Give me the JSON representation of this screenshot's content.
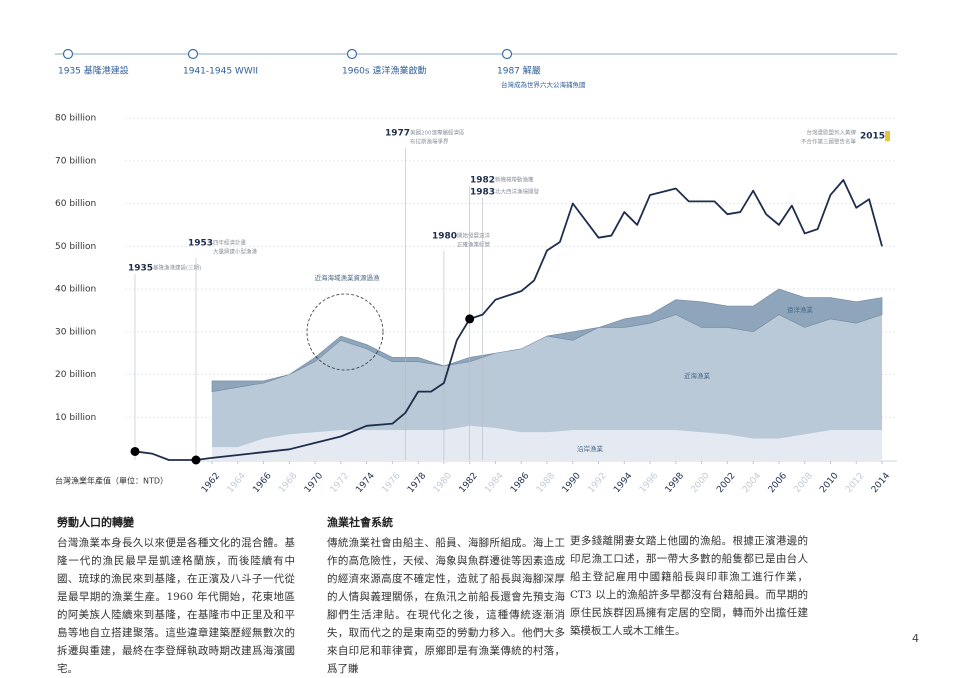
{
  "timeline": [
    {
      "label": "1935 基隆港建設"
    },
    {
      "label": "1941-1945 WWII"
    },
    {
      "label": "1960s 遠洋漁業啟動"
    },
    {
      "label": "1987 解嚴",
      "note": "台灣成為世界六大公海捕魚國"
    }
  ],
  "chart_data": {
    "type": "area",
    "y_label": "台灣漁業年產值（單位：NTD）",
    "ylim": [
      0,
      80
    ],
    "yticks": [
      {
        "value": 10,
        "label": "10 billion"
      },
      {
        "value": 20,
        "label": "20 billion"
      },
      {
        "value": 30,
        "label": "30 billion"
      },
      {
        "value": 40,
        "label": "40 billion"
      },
      {
        "value": 50,
        "label": "50 billion"
      },
      {
        "value": 60,
        "label": "60 billion"
      },
      {
        "value": 70,
        "label": "70 billion"
      },
      {
        "value": 80,
        "label": "80 billion"
      }
    ],
    "xticks": [
      1962,
      1964,
      1966,
      1968,
      1970,
      1972,
      1974,
      1976,
      1978,
      1980,
      1982,
      1984,
      1986,
      1988,
      1990,
      1992,
      1994,
      1996,
      1998,
      2000,
      2002,
      2004,
      2006,
      2008,
      2010,
      2012,
      2014
    ],
    "x": [
      1962,
      1964,
      1966,
      1968,
      1970,
      1972,
      1974,
      1976,
      1978,
      1980,
      1982,
      1984,
      1986,
      1988,
      1990,
      1992,
      1994,
      1996,
      1998,
      2000,
      2002,
      2004,
      2006,
      2008,
      2010,
      2012,
      2014
    ],
    "series": [
      {
        "name": "沿岸漁業",
        "color": "#e4e9f2",
        "values": [
          3,
          3,
          5,
          6,
          6.5,
          7,
          7,
          7,
          7,
          7,
          8,
          7.5,
          6.5,
          6.5,
          7,
          7,
          7,
          7,
          7,
          6.5,
          6,
          5,
          5,
          6,
          7,
          7,
          7
        ]
      },
      {
        "name": "近海漁業",
        "color": "#b9c9d7",
        "values": [
          13,
          14,
          13,
          14,
          16.5,
          21,
          19,
          16,
          16,
          15,
          15,
          17.5,
          19.5,
          22.5,
          21,
          24,
          24,
          25,
          27,
          24.5,
          25,
          25,
          29,
          25,
          26,
          25,
          27
        ]
      },
      {
        "name": "遠洋漁業",
        "color": "#8ea5bc",
        "values": [
          2.5,
          1.5,
          0.5,
          0,
          1,
          1,
          1,
          1,
          1,
          0,
          1,
          0,
          0,
          0,
          2,
          0,
          2,
          2,
          3.5,
          6,
          5,
          6,
          6,
          7,
          5,
          5,
          4
        ]
      }
    ],
    "line": {
      "color": "#1f2d4d",
      "x": [
        1935,
        1940,
        1945,
        1953,
        1962,
        1965,
        1968,
        1970,
        1972,
        1974,
        1976,
        1977,
        1978,
        1979,
        1980,
        1981,
        1982,
        1983,
        1984,
        1986,
        1987,
        1988,
        1989,
        1990,
        1991,
        1992,
        1993,
        1994,
        1995,
        1996,
        1998,
        1999,
        2001,
        2002,
        2003,
        2004,
        2005,
        2006,
        2007,
        2008,
        2009,
        2010,
        2011,
        2012,
        2013,
        2014
      ],
      "values": [
        2,
        1.5,
        0,
        0,
        0.5,
        1.5,
        2.5,
        4,
        5.5,
        8,
        8.5,
        11,
        16,
        16,
        18,
        28,
        33,
        34,
        37.5,
        39.5,
        42,
        49,
        51,
        60,
        56,
        52,
        52.5,
        58,
        55,
        62,
        63.5,
        60.5,
        60.5,
        57.5,
        58,
        63,
        57.5,
        55,
        59.5,
        53,
        54,
        62,
        65.5,
        59,
        61,
        50
      ]
    },
    "annotations": [
      {
        "year": 1935,
        "lines": [
          "基隆漁港建設(三期)"
        ]
      },
      {
        "year": 1953,
        "lines": [
          "四年經濟計畫",
          "大量興建小型漁港"
        ]
      },
      {
        "year": 1977,
        "lines": [
          "美國200浬專屬經濟區",
          "布拉斯漁場爭界"
        ]
      },
      {
        "year": 1980,
        "lines": [
          "開始發展遠洋",
          "正確漁業經營"
        ]
      },
      {
        "year": 1982,
        "lines": [
          "新機械帶動漁獲"
        ]
      },
      {
        "year": 1983,
        "lines": [
          "北大西洋漁場開發"
        ]
      },
      {
        "year": 2015,
        "lines": [
          "台灣遭歐盟列入黃牌",
          "不合作第三國警告名單"
        ]
      }
    ],
    "circle_note": "近海海域漁業資源過漁"
  },
  "columns": [
    {
      "heading": "勞動人口的轉變",
      "text": "台灣漁業本身長久以來便是各種文化的混合體。基隆一代的漁民最早是凱達格蘭族，而後陸續有中國、琉球的漁民來到基隆，在正濱及八斗子一代從是最早期的漁業生產。1960 年代開始，花東地區的阿美族人陸續來到基隆，在基隆市中正里及和平島等地自立搭建聚落。這些違章建築歷經無數次的拆遷與重建，最終在李登輝執政時期改建爲海濱國宅。"
    },
    {
      "heading": "漁業社會系統",
      "text": "傳統漁業社會由船主、船員、海腳所組成。海上工作的高危險性，天候、海象與魚群遷徙等因素造成的經濟來源高度不確定性，造就了船長與海腳深厚的人情與義理關係，在魚汛之前船長還會先預支海腳們生活津貼。在現代化之後，這種傳統逐漸消失，取而代之的是東南亞的勞動力移入。他們大多來自印尼和菲律賓，原鄉即是有漁業傳統的村落，爲了賺"
    },
    {
      "text": "更多錢離開妻女踏上他國的漁船。根據正濱港邊的印尼漁工口述，那一帶大多數的船隻都已是由台人船主登記雇用中國籍船長與印菲漁工進行作業，CT3 以上的漁船許多早都沒有台籍船員。而早期的原住民族群因爲擁有定居的空間，轉而外出擔任建築模板工人或木工維生。"
    }
  ],
  "page_number": "4"
}
